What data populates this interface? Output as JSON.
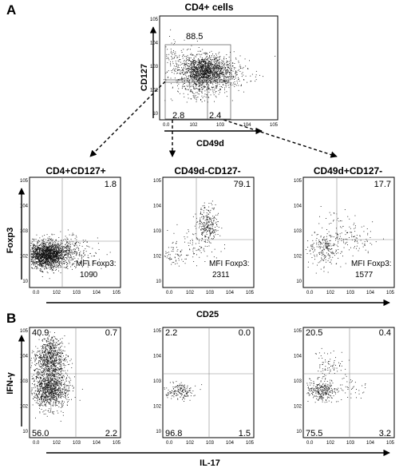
{
  "panel_labels": {
    "a": "A",
    "b": "B"
  },
  "chart_data": [
    {
      "type": "scatter",
      "id": "top",
      "title": "CD4+ cells",
      "xlabel": "CD49d",
      "ylabel": "CD127",
      "x_ticks": [
        "0.0",
        "10",
        "10",
        "10",
        "10"
      ],
      "y_ticks": [
        "10",
        "10",
        "10",
        "10",
        "10"
      ],
      "gates": [
        {
          "label": "88.5"
        },
        {
          "label": "2.8"
        },
        {
          "label": "2.4"
        }
      ]
    },
    {
      "type": "scatter",
      "id": "a1",
      "title": "CD4+CD127+",
      "xlabel": "CD25",
      "ylabel": "Foxp3",
      "quadrant_values": {
        "top_right": "1.8"
      },
      "mfi": {
        "label": "MFI Foxp3:",
        "value": "1090"
      }
    },
    {
      "type": "scatter",
      "id": "a2",
      "title": "CD49d-CD127-",
      "xlabel": "CD25",
      "ylabel": "Foxp3",
      "quadrant_values": {
        "top_right": "79.1"
      },
      "mfi": {
        "label": "MFI Foxp3:",
        "value": "2311"
      }
    },
    {
      "type": "scatter",
      "id": "a3",
      "title": "CD49d+CD127-",
      "xlabel": "CD25",
      "ylabel": "Foxp3",
      "quadrant_values": {
        "top_right": "17.7"
      },
      "mfi": {
        "label": "MFI Foxp3:",
        "value": "1577"
      }
    },
    {
      "type": "scatter",
      "id": "b1",
      "xlabel": "IL-17",
      "ylabel": "IFN-γ",
      "quadrant_values": {
        "top_left": "40.9",
        "top_right": "0.7",
        "bottom_left": "56.0",
        "bottom_right": "2.2"
      }
    },
    {
      "type": "scatter",
      "id": "b2",
      "xlabel": "IL-17",
      "ylabel": "IFN-γ",
      "quadrant_values": {
        "top_left": "2.2",
        "top_right": "0.0",
        "bottom_left": "96.8",
        "bottom_right": "1.5"
      }
    },
    {
      "type": "scatter",
      "id": "b3",
      "xlabel": "IL-17",
      "ylabel": "IFN-γ",
      "quadrant_values": {
        "top_left": "20.5",
        "top_right": "0.4",
        "bottom_left": "75.5",
        "bottom_right": "3.2"
      }
    }
  ],
  "shared_axis_labels": {
    "a_x": "CD25",
    "a_y": "Foxp3",
    "b_x": "IL-17",
    "b_y": "IFN-γ"
  },
  "tick_labels": {
    "x": [
      "0.0",
      "10",
      "10",
      "10",
      "10"
    ],
    "y": [
      "10",
      "10",
      "10",
      "10",
      "10"
    ],
    "exponents": [
      "2",
      "3",
      "4",
      "5"
    ]
  }
}
